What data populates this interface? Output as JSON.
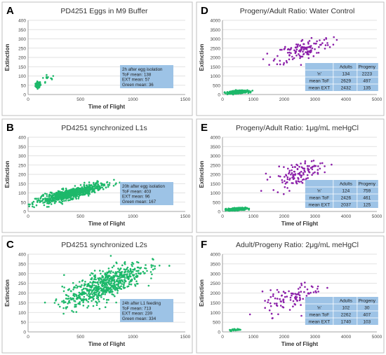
{
  "figure": {
    "panels": [
      "A",
      "B",
      "C",
      "D",
      "E",
      "F"
    ]
  },
  "chart_data": [
    {
      "type": "scatter",
      "letter": "A",
      "title": "PD4251 Eggs in M9 Buffer",
      "xlabel": "Time of Flight",
      "ylabel": "Extinction",
      "xlim": [
        0,
        1500
      ],
      "ylim": [
        0,
        400
      ],
      "xticks": [
        "0",
        "500",
        "1000",
        "1500"
      ],
      "yticks": [
        "0",
        "50",
        "100",
        "150",
        "200",
        "250",
        "300",
        "350",
        "400"
      ],
      "grid": true,
      "series": [
        {
          "color": "#1db86a",
          "cloud": [
            {
              "cx": 95,
              "cy": 52,
              "sx": 12,
              "sy": 8,
              "n": 80,
              "tilt": 0.15
            },
            {
              "cx": 180,
              "cy": 82,
              "sx": 40,
              "sy": 14,
              "n": 12,
              "tilt": 0.1
            }
          ]
        }
      ],
      "annotation": {
        "lines": [
          "2h after egg isolation",
          "ToF mean: 138",
          "EXT mean: 57",
          "Green mean: 36"
        ]
      }
    },
    {
      "type": "scatter",
      "letter": "B",
      "title": "PD4251 synchronized  L1s",
      "xlabel": "Time of Flight",
      "ylabel": "Extinction",
      "xlim": [
        0,
        1500
      ],
      "ylim": [
        0,
        400
      ],
      "xticks": [
        "0",
        "500",
        "1000",
        "1500"
      ],
      "yticks": [
        "0",
        "50",
        "100",
        "150",
        "200",
        "250",
        "300",
        "350",
        "400"
      ],
      "grid": true,
      "series": [
        {
          "color": "#1db86a",
          "cloud": [
            {
              "cx": 400,
              "cy": 95,
              "sx": 160,
              "sy": 14,
              "n": 700,
              "tilt": 0.14
            }
          ]
        }
      ],
      "annotation": {
        "lines": [
          "20h after egg isolation",
          "ToF mean: 403",
          "EXT mean: 96",
          "Green mean: 167"
        ]
      }
    },
    {
      "type": "scatter",
      "letter": "C",
      "title": "PD4251 synchronized  L2s",
      "xlabel": "Time of Flight",
      "ylabel": "Extinction",
      "xlim": [
        0,
        1500
      ],
      "ylim": [
        0,
        400
      ],
      "xticks": [
        "0",
        "500",
        "1000",
        "1500"
      ],
      "yticks": [
        "0",
        "50",
        "100",
        "150",
        "200",
        "250",
        "300",
        "350",
        "400"
      ],
      "grid": true,
      "series": [
        {
          "color": "#1db86a",
          "cloud": [
            {
              "cx": 720,
              "cy": 240,
              "sx": 190,
              "sy": 38,
              "n": 650,
              "tilt": 0.22
            }
          ]
        }
      ],
      "annotation": {
        "lines": [
          "24h after L1 feeding",
          "ToF mean: 713",
          "EXT mean: 239",
          "Green mean: 334"
        ]
      }
    },
    {
      "type": "scatter",
      "letter": "D",
      "title": "Progeny/Adult Ratio: Water Control",
      "xlabel": "",
      "ylabel": "Extinction",
      "xlim": [
        0,
        5000
      ],
      "ylim": [
        0,
        4000
      ],
      "xticks": [
        "0",
        "1000",
        "2000",
        "3000",
        "4000",
        "5000"
      ],
      "yticks": [
        "0",
        "500",
        "1000",
        "1500",
        "2000",
        "2500",
        "3000",
        "3500",
        "4000"
      ],
      "grid": true,
      "series": [
        {
          "color": "#1db86a",
          "cloud": [
            {
              "cx": 500,
              "cy": 135,
              "sx": 150,
              "sy": 35,
              "n": 500,
              "tilt": 0.1
            }
          ]
        },
        {
          "color": "#8b1fa9",
          "cloud": [
            {
              "cx": 2629,
              "cy": 2432,
              "sx": 450,
              "sy": 280,
              "n": 134,
              "tilt": 0.45
            }
          ]
        }
      ],
      "table": {
        "header": [
          "",
          "Adults",
          "Progeny"
        ],
        "rows": [
          [
            "'n'",
            "134",
            "2223"
          ],
          [
            "mean ToF",
            "2629",
            "497"
          ],
          [
            "mean EXT",
            "2432",
            "135"
          ]
        ]
      }
    },
    {
      "type": "scatter",
      "letter": "E",
      "title": "Progeny/Adult Ratio: 1μg/mL meHgCl",
      "xlabel": "Time of Flight",
      "ylabel": "Extinction",
      "xlim": [
        0,
        5000
      ],
      "ylim": [
        0,
        4000
      ],
      "xticks": [
        "0",
        "1000",
        "2000",
        "3000",
        "4000",
        "5000"
      ],
      "yticks": [
        "0",
        "500",
        "1000",
        "1500",
        "2000",
        "2500",
        "3000",
        "3500",
        "4000"
      ],
      "grid": true,
      "series": [
        {
          "color": "#1db86a",
          "cloud": [
            {
              "cx": 461,
              "cy": 125,
              "sx": 140,
              "sy": 32,
              "n": 450,
              "tilt": 0.1
            }
          ]
        },
        {
          "color": "#8b1fa9",
          "cloud": [
            {
              "cx": 2426,
              "cy": 2037,
              "sx": 420,
              "sy": 300,
              "n": 124,
              "tilt": 0.45
            }
          ]
        }
      ],
      "table": {
        "header": [
          "",
          "Adults",
          "Progeny"
        ],
        "rows": [
          [
            "'n'",
            "124",
            "759"
          ],
          [
            "mean ToF",
            "2426",
            "461"
          ],
          [
            "mean EXT",
            "2037",
            "125"
          ]
        ]
      }
    },
    {
      "type": "scatter",
      "letter": "F",
      "title": "Adult/Progeny Ratio: 2μg/mL meHgCl",
      "xlabel": "Time of Flight",
      "ylabel": "Extinction",
      "xlim": [
        0,
        5000
      ],
      "ylim": [
        0,
        4000
      ],
      "xticks": [
        "0",
        "1000",
        "2000",
        "3000",
        "4000",
        "5000"
      ],
      "yticks": [
        "0",
        "500",
        "1000",
        "1500",
        "2000",
        "2500",
        "3000",
        "3500",
        "4000"
      ],
      "grid": true,
      "series": [
        {
          "color": "#1db86a",
          "cloud": [
            {
              "cx": 407,
              "cy": 103,
              "sx": 110,
              "sy": 25,
              "n": 30,
              "tilt": 0.1
            }
          ]
        },
        {
          "color": "#8b1fa9",
          "cloud": [
            {
              "cx": 2262,
              "cy": 1740,
              "sx": 480,
              "sy": 330,
              "n": 102,
              "tilt": 0.4
            }
          ]
        }
      ],
      "table": {
        "header": [
          "",
          "Adults",
          "Progeny"
        ],
        "rows": [
          [
            "'n'",
            "102",
            "30"
          ],
          [
            "mean ToF",
            "2262",
            "407"
          ],
          [
            "mean EXT",
            "1740",
            "103"
          ]
        ]
      }
    }
  ]
}
